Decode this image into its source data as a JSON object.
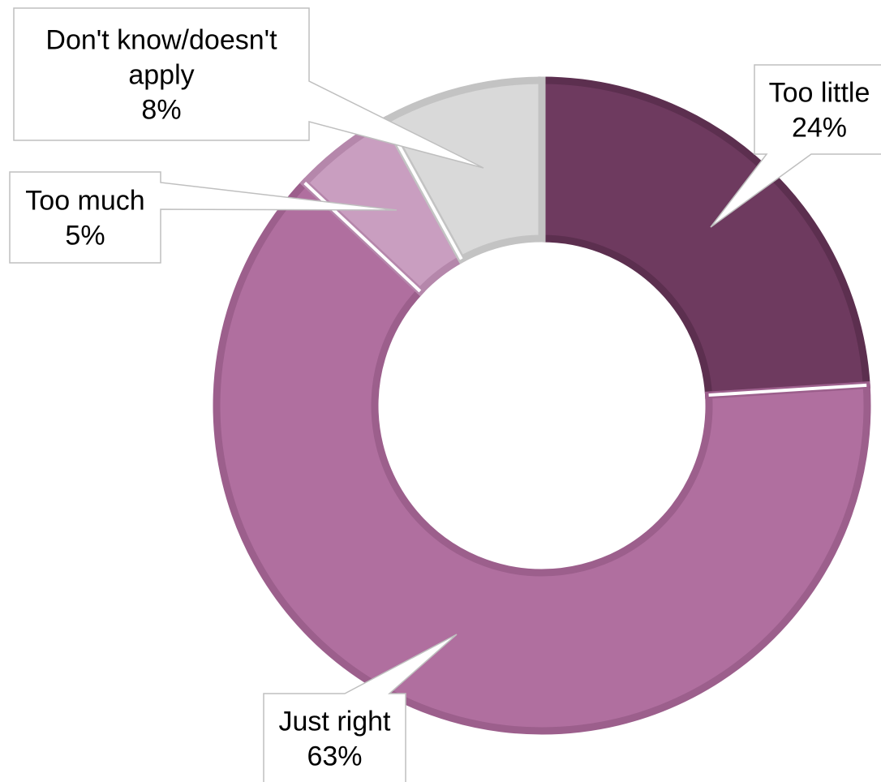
{
  "chart_data": {
    "type": "pie",
    "variant": "donut",
    "title": "",
    "slices": [
      {
        "label": "Too little",
        "value": 24,
        "value_label": "24%",
        "color": "#6e3a5f",
        "border": "#5c2f4f"
      },
      {
        "label": "Just right",
        "value": 63,
        "value_label": "63%",
        "color": "#b06f9f",
        "border": "#9c5f8c"
      },
      {
        "label": "Too much",
        "value": 5,
        "value_label": "5%",
        "color": "#c99ec0",
        "border": "#b587ab"
      },
      {
        "label": "Don't know/doesn't apply",
        "value": 8,
        "value_label": "8%",
        "color": "#d9d9d9",
        "border": "#c3c3c3"
      }
    ],
    "callout_labels": [
      {
        "lines": [
          "Too little"
        ],
        "value": "24%"
      },
      {
        "lines": [
          "Just right"
        ],
        "value": "63%"
      },
      {
        "lines": [
          "Too much"
        ],
        "value": "5%"
      },
      {
        "lines": [
          "Don't know/doesn't",
          "apply"
        ],
        "value": "8%"
      }
    ],
    "legend": "none",
    "data_labels": "callouts"
  }
}
